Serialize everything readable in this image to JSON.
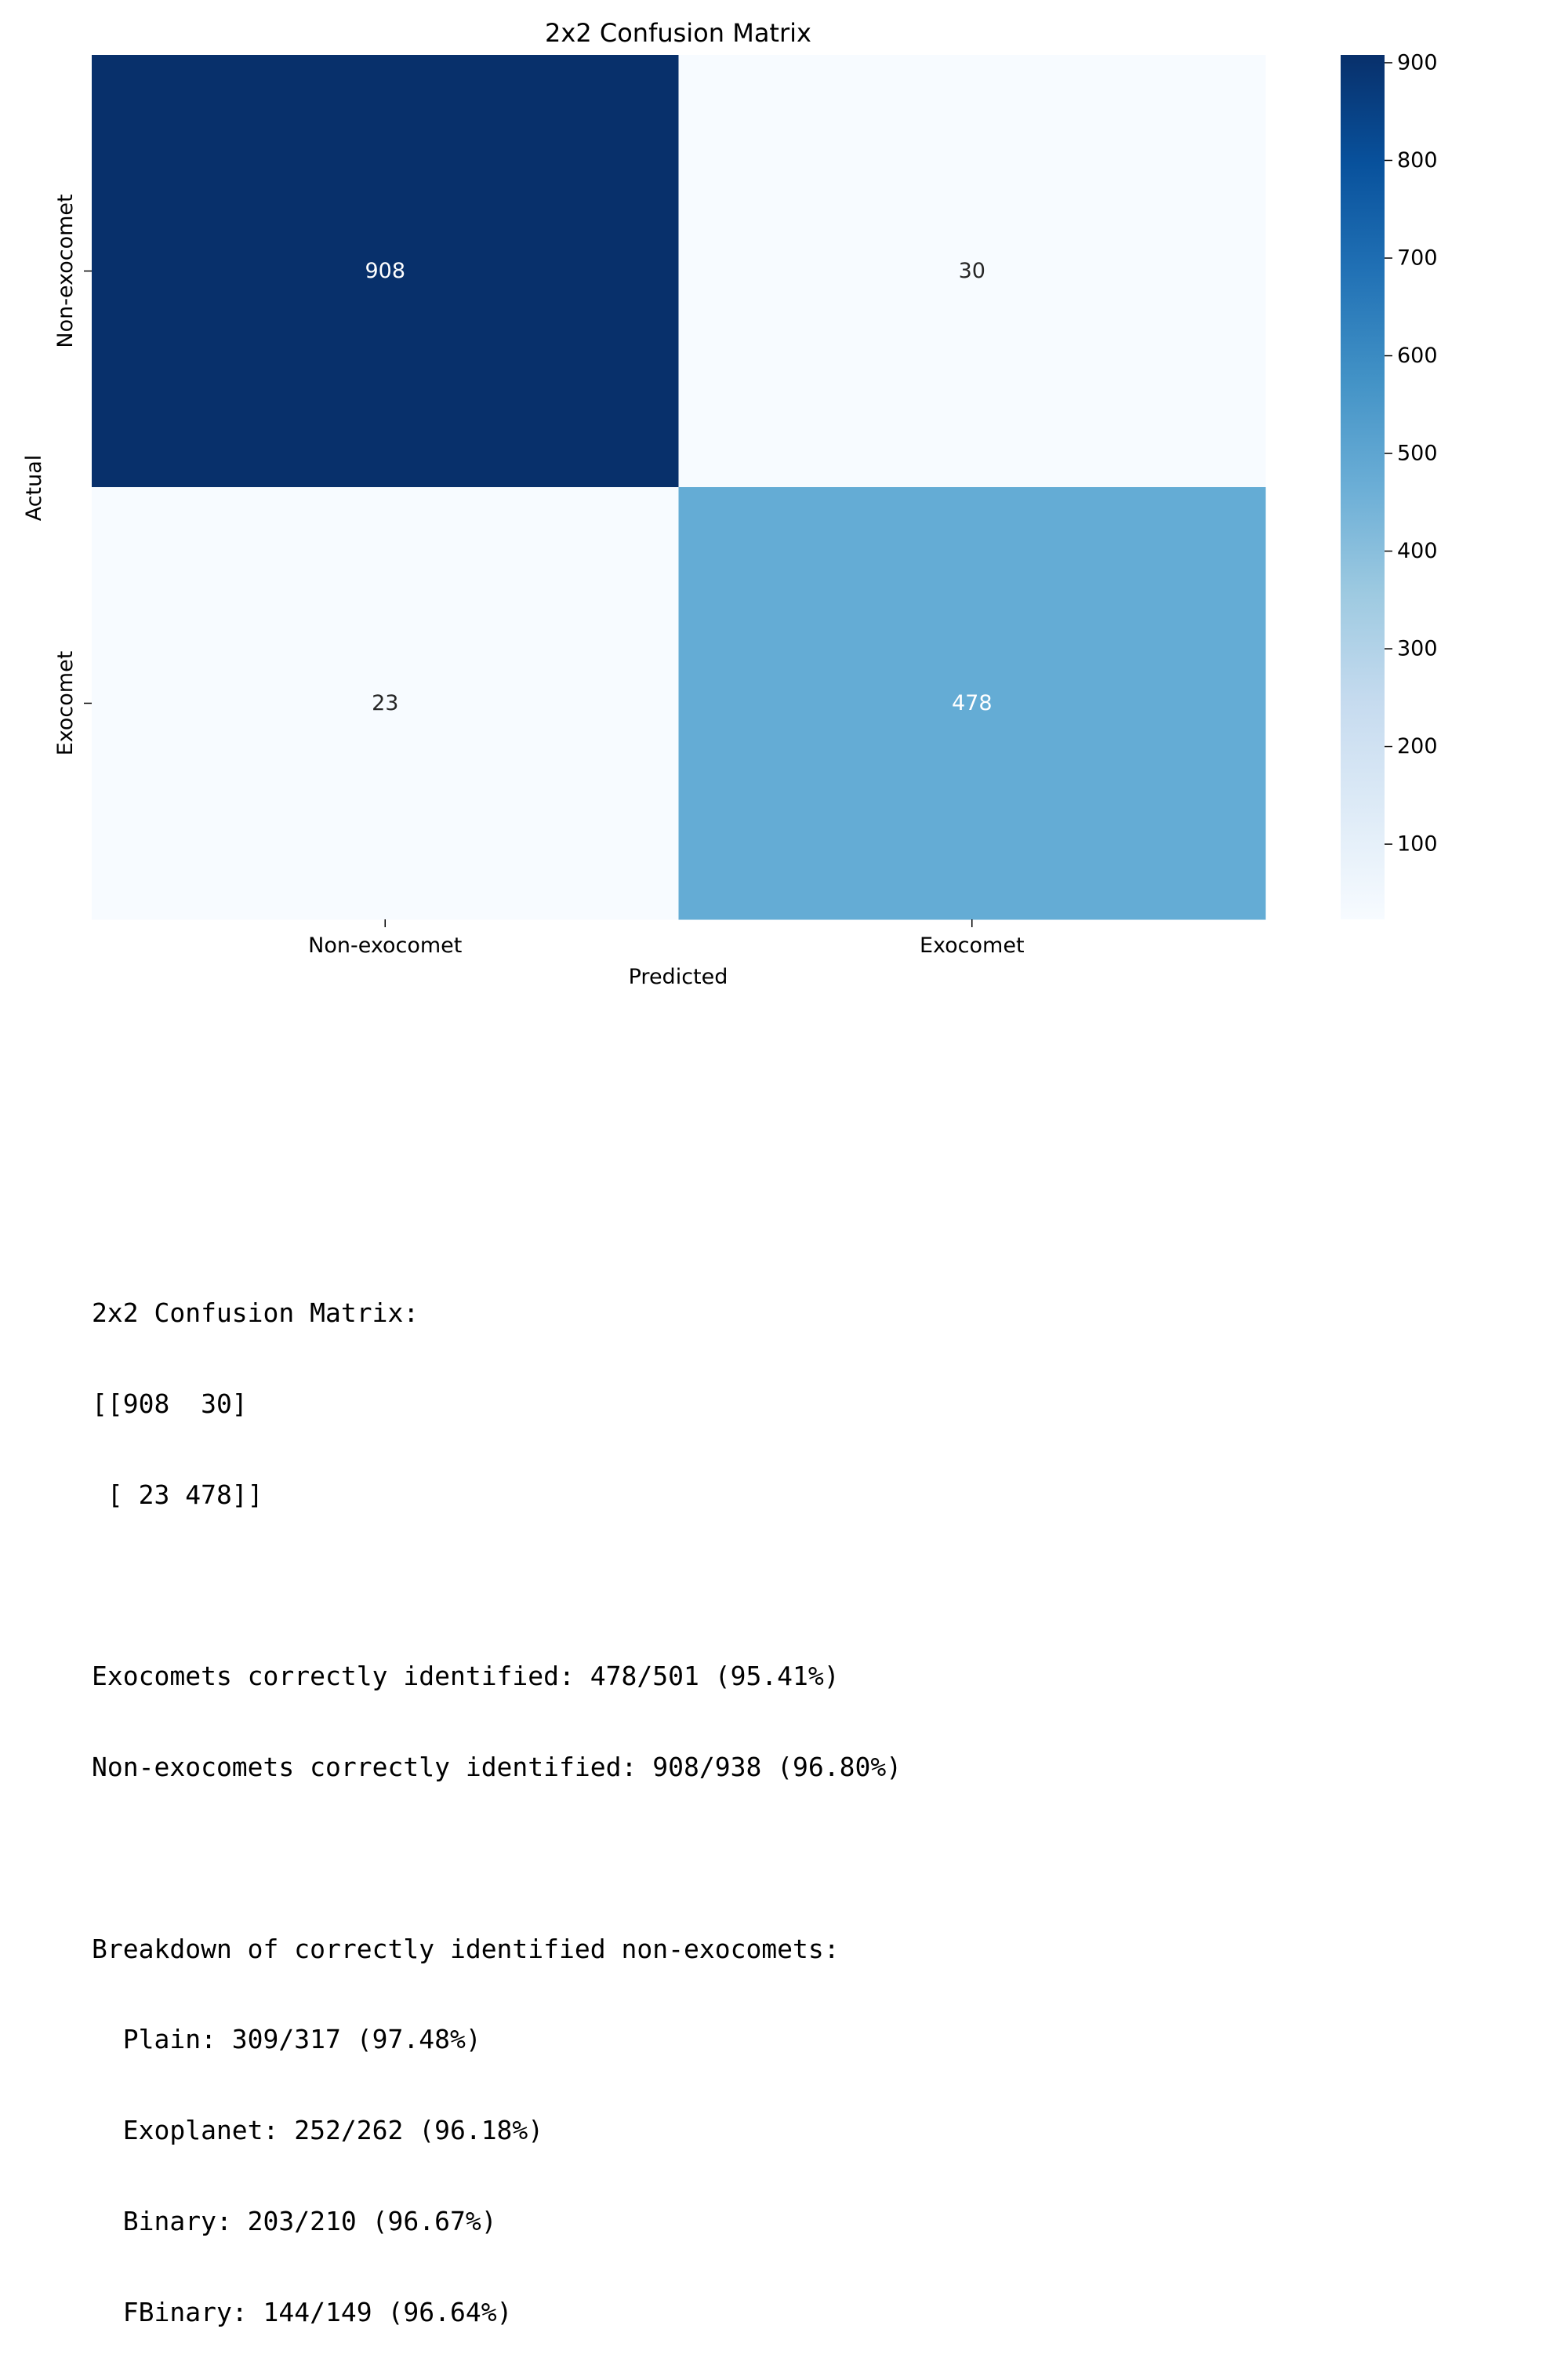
{
  "chart_data": {
    "type": "heatmap",
    "title": "2x2 Confusion Matrix",
    "xlabel": "Predicted",
    "ylabel": "Actual",
    "x_categories": [
      "Non-exocomet",
      "Exocomet"
    ],
    "y_categories": [
      "Non-exocomet",
      "Exocomet"
    ],
    "values": [
      [
        908,
        30
      ],
      [
        23,
        478
      ]
    ],
    "colormap": "Blues",
    "colorbar": {
      "range": [
        23,
        908
      ],
      "ticks": [
        100,
        200,
        300,
        400,
        500,
        600,
        700,
        800,
        900
      ]
    },
    "cell_colors": [
      [
        "#08306b",
        "#f7fbff"
      ],
      [
        "#f7fbff",
        "#64acd5"
      ]
    ],
    "annotation_colors": [
      [
        "#ffffff",
        "#262626"
      ],
      [
        "#262626",
        "#ffffff"
      ]
    ]
  },
  "report": {
    "lines": [
      "2x2 Confusion Matrix:",
      "[[908  30]",
      " [ 23 478]]",
      "",
      "Exocomets correctly identified: 478/501 (95.41%)",
      "Non-exocomets correctly identified: 908/938 (96.80%)",
      "",
      "Breakdown of correctly identified non-exocomets:",
      "  Plain: 309/317 (97.48%)",
      "  Exoplanet: 252/262 (96.18%)",
      "  Binary: 203/210 (96.67%)",
      "  FBinary: 144/149 (96.64%)"
    ]
  }
}
